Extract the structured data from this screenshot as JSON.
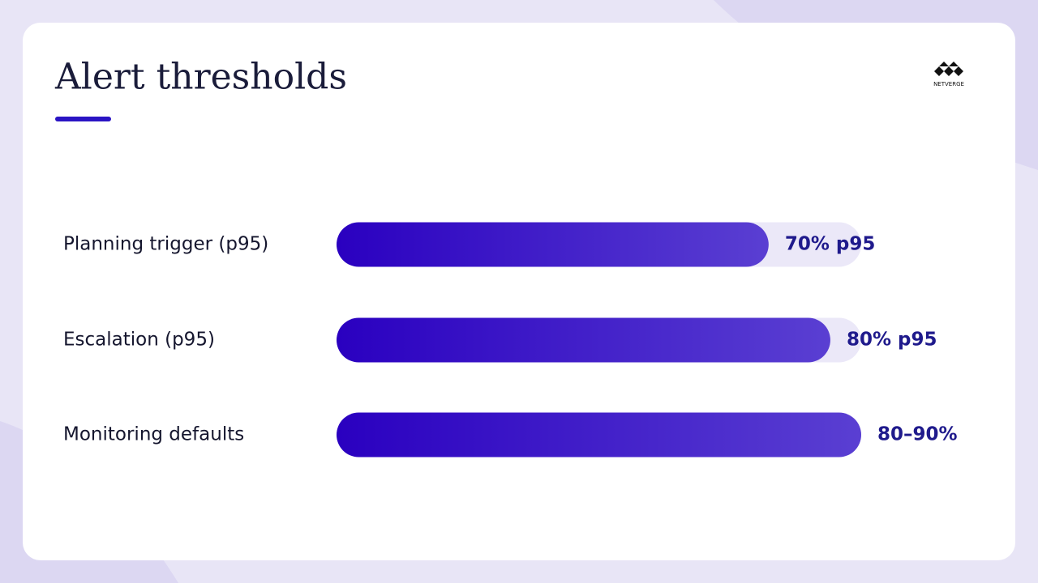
{
  "brand": "NETVERGE",
  "chart_data": {
    "type": "bar",
    "orientation": "horizontal",
    "title": "Alert thresholds",
    "categories": [
      "Planning trigger (p95)",
      "Escalation (p95)",
      "Monitoring defaults"
    ],
    "values": [
      70,
      80,
      85
    ],
    "value_labels": [
      "70% p95",
      "80% p95",
      "80–90%"
    ],
    "color": "#2a08c2",
    "xlim": [
      0,
      85
    ]
  }
}
